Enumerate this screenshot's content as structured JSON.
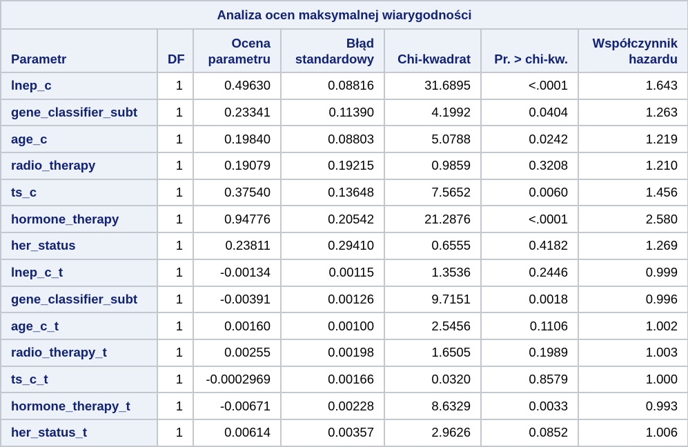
{
  "table": {
    "title": "Analiza ocen maksymalnej wiarygodności",
    "headers": [
      {
        "lines": [
          "Parametr"
        ]
      },
      {
        "lines": [
          "DF"
        ]
      },
      {
        "lines": [
          "Ocena",
          "parametru"
        ]
      },
      {
        "lines": [
          "Błąd",
          "standardowy"
        ]
      },
      {
        "lines": [
          "Chi-kwadrat"
        ]
      },
      {
        "lines": [
          "Pr. > chi-kw."
        ]
      },
      {
        "lines": [
          "Współczynnik",
          "hazardu"
        ]
      }
    ],
    "rows": [
      [
        "lnep_c",
        "1",
        "0.49630",
        "0.08816",
        "31.6895",
        "<.0001",
        "1.643"
      ],
      [
        "gene_classifier_subt",
        "1",
        "0.23341",
        "0.11390",
        "4.1992",
        "0.0404",
        "1.263"
      ],
      [
        "age_c",
        "1",
        "0.19840",
        "0.08803",
        "5.0788",
        "0.0242",
        "1.219"
      ],
      [
        "radio_therapy",
        "1",
        "0.19079",
        "0.19215",
        "0.9859",
        "0.3208",
        "1.210"
      ],
      [
        "ts_c",
        "1",
        "0.37540",
        "0.13648",
        "7.5652",
        "0.0060",
        "1.456"
      ],
      [
        "hormone_therapy",
        "1",
        "0.94776",
        "0.20542",
        "21.2876",
        "<.0001",
        "2.580"
      ],
      [
        "her_status",
        "1",
        "0.23811",
        "0.29410",
        "0.6555",
        "0.4182",
        "1.269"
      ],
      [
        "lnep_c_t",
        "1",
        "-0.00134",
        "0.00115",
        "1.3536",
        "0.2446",
        "0.999"
      ],
      [
        "gene_classifier_subt",
        "1",
        "-0.00391",
        "0.00126",
        "9.7151",
        "0.0018",
        "0.996"
      ],
      [
        "age_c_t",
        "1",
        "0.00160",
        "0.00100",
        "2.5456",
        "0.1106",
        "1.002"
      ],
      [
        "radio_therapy_t",
        "1",
        "0.00255",
        "0.00198",
        "1.6505",
        "0.1989",
        "1.003"
      ],
      [
        "ts_c_t",
        "1",
        "-0.0002969",
        "0.00166",
        "0.0320",
        "0.8579",
        "1.000"
      ],
      [
        "hormone_therapy_t",
        "1",
        "-0.00671",
        "0.00228",
        "8.6329",
        "0.0033",
        "0.993"
      ],
      [
        "her_status_t",
        "1",
        "0.00614",
        "0.00357",
        "2.9626",
        "0.0852",
        "1.006"
      ]
    ]
  },
  "colors": {
    "header_bg": "#edf2f9",
    "header_text": "#112277",
    "border": "#c2c7d0",
    "cell_bg": "#ffffff"
  }
}
